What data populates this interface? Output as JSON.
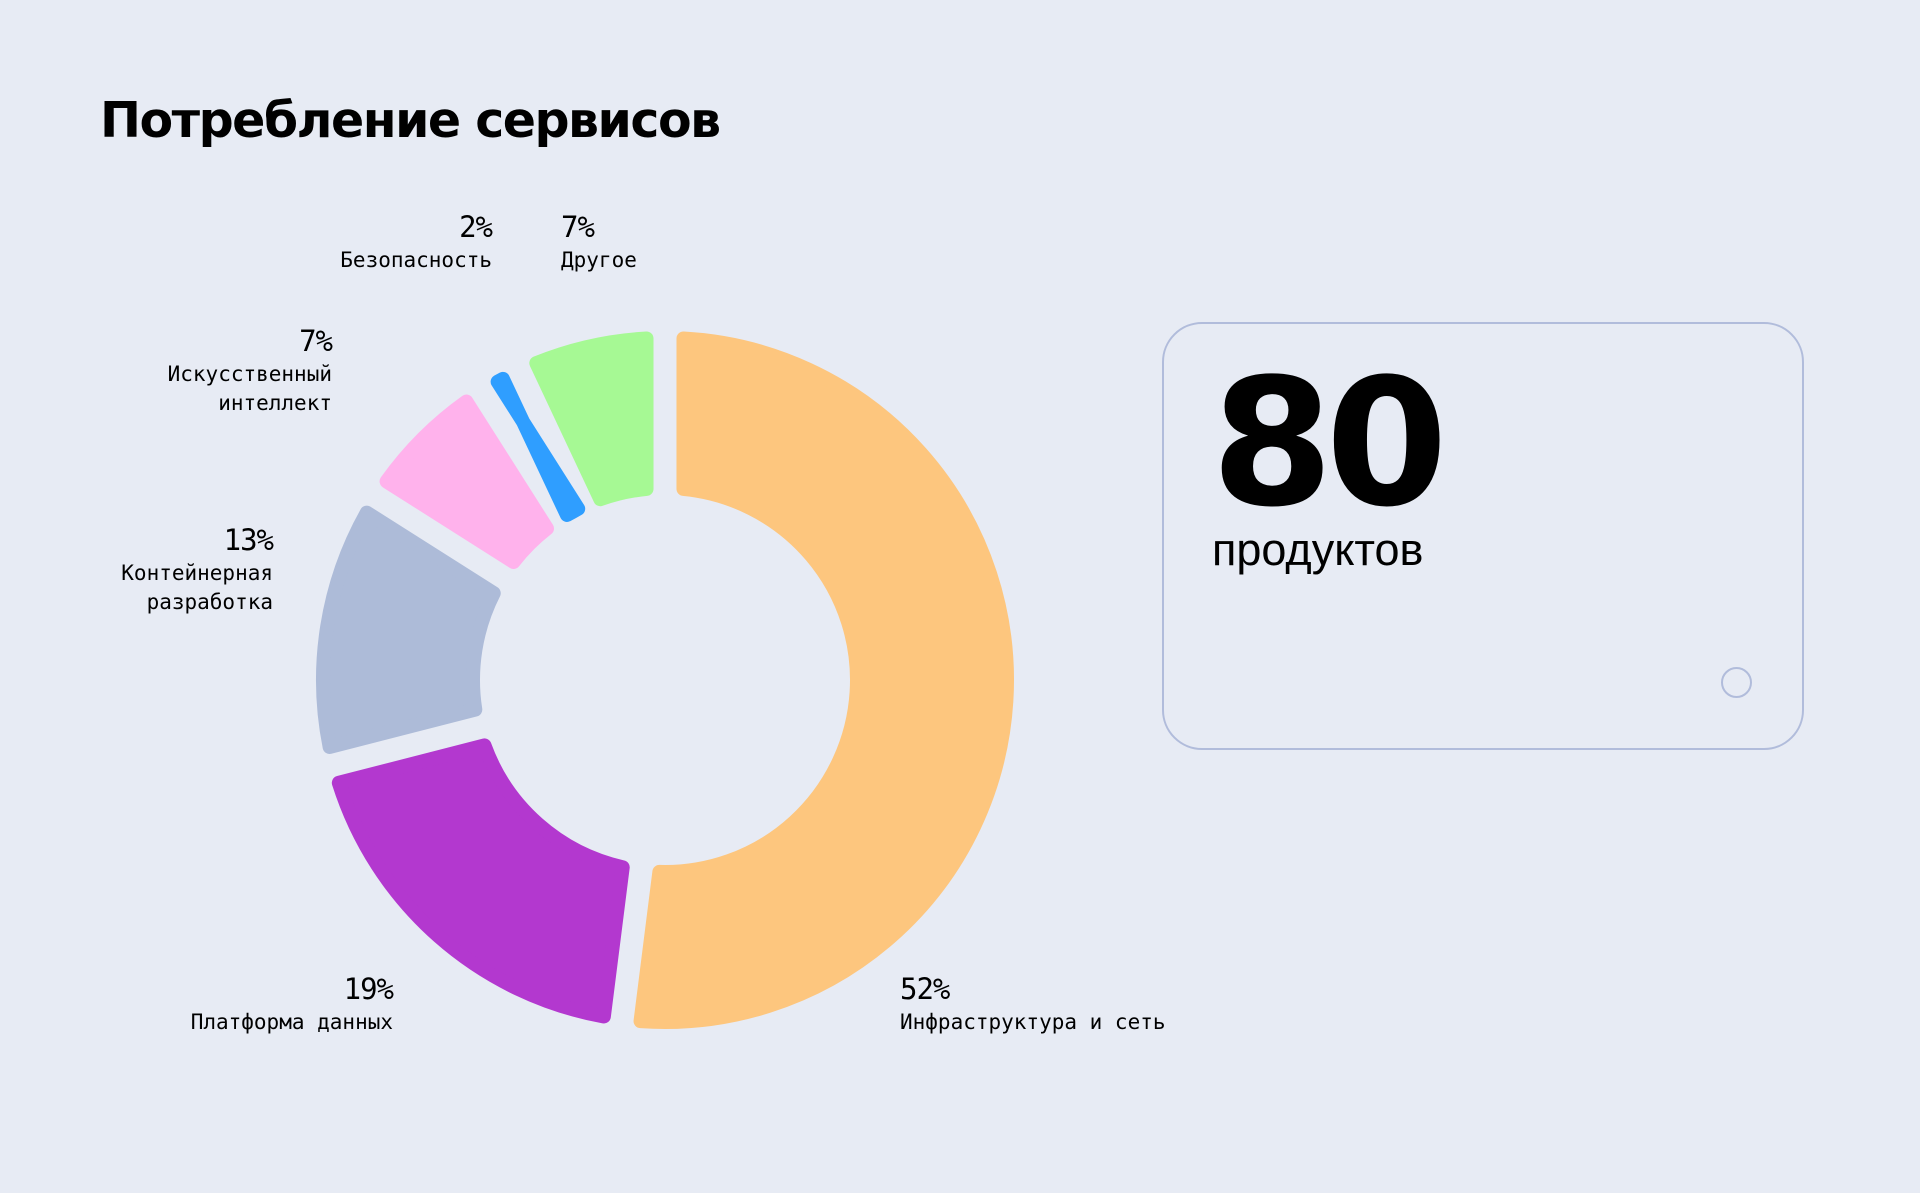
{
  "title": "Потребление сервисов",
  "chart_data": {
    "type": "pie",
    "variant": "donut",
    "title": "Потребление сервисов",
    "slices": [
      {
        "label": "Инфраструктура и сеть",
        "value": 52,
        "value_label": "52%",
        "color": "#fdc67e"
      },
      {
        "label": "Платформа данных",
        "value": 19,
        "value_label": "19%",
        "color": "#b338cf"
      },
      {
        "label": "Контейнерная\nразработка",
        "value": 13,
        "value_label": "13%",
        "color": "#adbbd8"
      },
      {
        "label": "Искусственный\nинтеллект",
        "value": 7,
        "value_label": "7%",
        "color": "#ffb2ec"
      },
      {
        "label": "Безопасность",
        "value": 2,
        "value_label": "2%",
        "color": "#2f9eff"
      },
      {
        "label": "Другое",
        "value": 7,
        "value_label": "7%",
        "color": "#a6f994"
      }
    ]
  },
  "card": {
    "number": "80",
    "unit": "продуктов"
  }
}
